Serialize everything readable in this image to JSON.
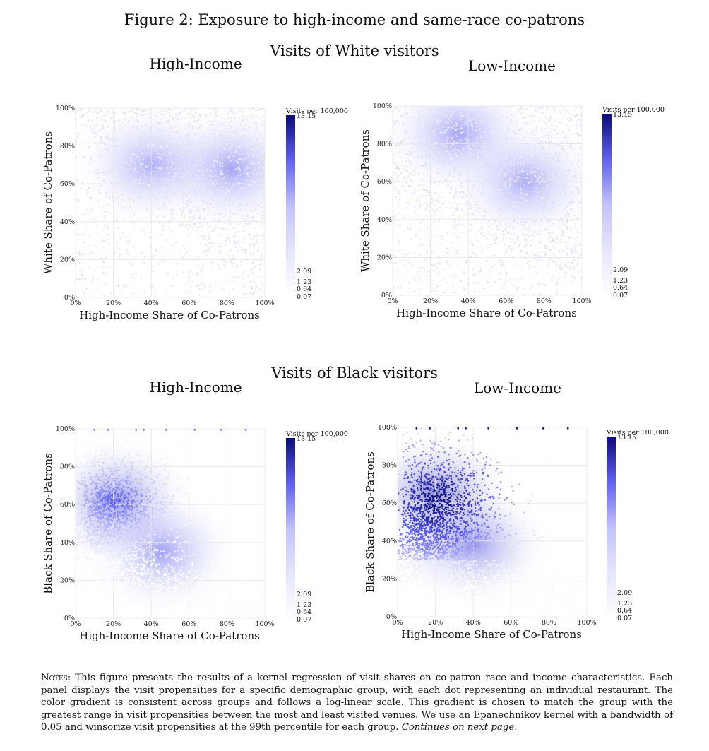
{
  "figure_title": "Figure 2: Exposure to high-income and same-race co-patrons",
  "group_titles": [
    "Visits of White visitors",
    "Visits of Black visitors"
  ],
  "notes": {
    "lead": "Notes:",
    "body": " This figure presents the results of a kernel regression of visit shares on co-patron race and income characteristics. Each panel displays the visit propensities for a specific demographic group, with each dot representing an individual restaurant. The color gradient is consistent across groups and follows a log-linear scale. This gradient is chosen to match the group with the greatest range in visit propensities between the most and least visited venues. We use an Epanechnikov kernel with a bandwidth of 0.05 and winsorize visit propensities at the 99th percentile for each group. ",
    "continues": "Continues on next page."
  },
  "colors": {
    "low": "#ffffff",
    "high": "#0b0b7a",
    "grid": "#e6e6e6"
  },
  "chart_data": [
    {
      "type": "heatmap",
      "group": "White visitors",
      "title": "High-Income",
      "xlabel": "High-Income Share of Co-Patrons",
      "ylabel": "White Share of Co-Patrons",
      "xlim": [
        0,
        100
      ],
      "ylim": [
        0,
        100
      ],
      "xticks": [
        "0%",
        "20%",
        "40%",
        "60%",
        "80%",
        "100%"
      ],
      "yticks": [
        "0%",
        "20%",
        "40%",
        "60%",
        "80%",
        "100%"
      ],
      "colorbar": {
        "label": "Visits per 100,000",
        "max_label": "13.15",
        "ticks": [
          "2.09",
          "1.23",
          "0.64",
          "0.07"
        ],
        "scale": "log-linear"
      },
      "density_centers": [
        {
          "x": 82,
          "y": 68,
          "intensity": 0.3
        },
        {
          "x": 40,
          "y": 70,
          "intensity": 0.1
        }
      ]
    },
    {
      "type": "heatmap",
      "group": "White visitors",
      "title": "Low-Income",
      "xlabel": "High-Income Share of Co-Patrons",
      "ylabel": "White Share of Co-Patrons",
      "xlim": [
        0,
        100
      ],
      "ylim": [
        0,
        100
      ],
      "xticks": [
        "0%",
        "20%",
        "40%",
        "60%",
        "80%",
        "100%"
      ],
      "yticks": [
        "0%",
        "20%",
        "40%",
        "60%",
        "80%",
        "100%"
      ],
      "colorbar": {
        "label": "Visits per 100,000",
        "max_label": "13.15",
        "ticks": [
          "2.09",
          "1.23",
          "0.64",
          "0.07"
        ],
        "scale": "log-linear"
      },
      "density_centers": [
        {
          "x": 35,
          "y": 85,
          "intensity": 0.28
        },
        {
          "x": 70,
          "y": 60,
          "intensity": 0.15
        }
      ]
    },
    {
      "type": "heatmap",
      "group": "Black visitors",
      "title": "High-Income",
      "xlabel": "High-Income Share of Co-Patrons",
      "ylabel": "Black Share of Co-Patrons",
      "xlim": [
        0,
        100
      ],
      "ylim": [
        0,
        100
      ],
      "xticks": [
        "0%",
        "20%",
        "40%",
        "60%",
        "80%",
        "100%"
      ],
      "yticks": [
        "0%",
        "20%",
        "40%",
        "60%",
        "80%",
        "100%"
      ],
      "colorbar": {
        "label": "Visits per 100,000",
        "max_label": "13.15",
        "ticks": [
          "2.09",
          "1.23",
          "0.64",
          "0.07"
        ],
        "scale": "log-linear"
      },
      "density_centers": [
        {
          "x": 22,
          "y": 62,
          "intensity": 0.65
        },
        {
          "x": 45,
          "y": 35,
          "intensity": 0.35
        }
      ]
    },
    {
      "type": "heatmap",
      "group": "Black visitors",
      "title": "Low-Income",
      "xlabel": "High-Income Share of Co-Patrons",
      "ylabel": "Black Share of Co-Patrons",
      "xlim": [
        0,
        100
      ],
      "ylim": [
        0,
        100
      ],
      "xticks": [
        "0%",
        "20%",
        "40%",
        "60%",
        "80%",
        "100%"
      ],
      "yticks": [
        "0%",
        "20%",
        "40%",
        "60%",
        "80%",
        "100%"
      ],
      "colorbar": {
        "label": "Visits per 100,000",
        "max_label": "13.15",
        "ticks": [
          "2.09",
          "1.23",
          "0.64",
          "0.07"
        ],
        "scale": "log-linear"
      },
      "density_centers": [
        {
          "x": 20,
          "y": 65,
          "intensity": 0.95
        },
        {
          "x": 40,
          "y": 38,
          "intensity": 0.6
        }
      ]
    }
  ]
}
